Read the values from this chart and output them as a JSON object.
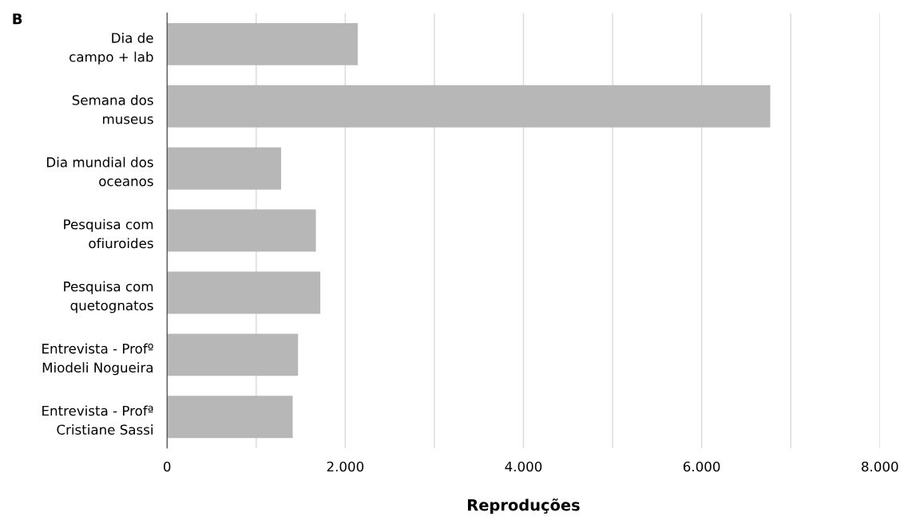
{
  "chart_data": {
    "type": "bar",
    "orientation": "horizontal",
    "xlabel": "Reproduções",
    "annotations": [
      "B"
    ],
    "categories": [
      "Dia de\ncampo + lab",
      "Semana dos\nmuseus",
      "Dia mundial dos\noceanos",
      "Pesquisa com\nofiuroides",
      "Pesquisa com\nquetognatos",
      "Entrevista - Profº\nMiodeli Nogueira",
      "Entrevista - Profª\nCristiane Sassi"
    ],
    "values": [
      2140,
      6770,
      1280,
      1670,
      1720,
      1470,
      1410
    ],
    "color": "#b7b7b7",
    "xlim": [
      0,
      8000
    ],
    "xticks": [
      0,
      {
        "value": 1000,
        "label": null
      },
      {
        "value": 2000,
        "label": "2.000"
      },
      {
        "value": 3000,
        "label": null
      },
      {
        "value": 4000,
        "label": "4.000"
      },
      {
        "value": 5000,
        "label": null
      },
      {
        "value": 6000,
        "label": "6.000"
      },
      {
        "value": 7000,
        "label": null
      },
      {
        "value": 8000,
        "label": "8.000"
      }
    ],
    "grid": "x"
  }
}
